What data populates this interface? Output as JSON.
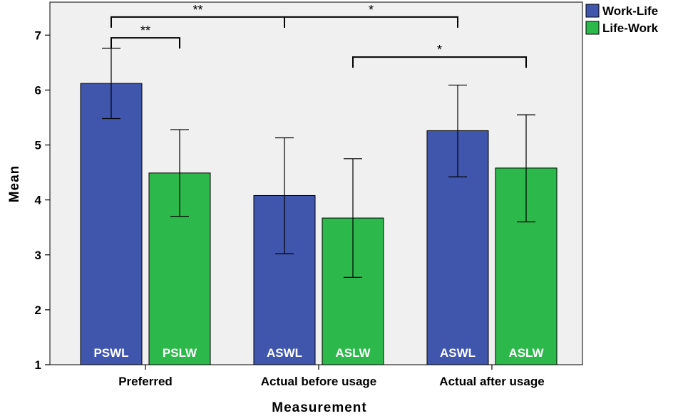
{
  "chart_data": {
    "type": "bar",
    "categories": [
      "Preferred",
      "Actual before usage",
      "Actual after usage"
    ],
    "xlabel": "Measurement",
    "ylabel": "Mean",
    "ylim": [
      1,
      7.6
    ],
    "yticks": [
      1,
      2,
      3,
      4,
      5,
      6,
      7
    ],
    "grid": false,
    "legend_position": "top-right",
    "series": [
      {
        "name": "Work-Life",
        "color": "#3f56ac",
        "values": [
          6.12,
          4.08,
          5.26
        ],
        "error_low": [
          5.48,
          3.02,
          4.42
        ],
        "error_high": [
          6.76,
          5.13,
          6.09
        ],
        "bar_labels": [
          "PSWL",
          "ASWL",
          "ASWL"
        ]
      },
      {
        "name": "Life-Work",
        "color": "#2db84b",
        "values": [
          4.49,
          3.67,
          4.58
        ],
        "error_low": [
          3.7,
          2.59,
          3.6
        ],
        "error_high": [
          5.28,
          4.75,
          5.55
        ],
        "bar_labels": [
          "PSLW",
          "ASLW",
          "ASLW"
        ]
      }
    ],
    "significance": [
      {
        "from": [
          0,
          0
        ],
        "to": [
          1,
          0
        ],
        "label": "**",
        "level": 7.33
      },
      {
        "from": [
          0,
          0
        ],
        "to": [
          0,
          1
        ],
        "label": "**",
        "level": 6.95
      },
      {
        "from": [
          1,
          0
        ],
        "to": [
          2,
          0
        ],
        "label": "*",
        "level": 7.33
      },
      {
        "from": [
          1,
          1
        ],
        "to": [
          2,
          1
        ],
        "label": "*",
        "level": 6.6
      }
    ]
  }
}
